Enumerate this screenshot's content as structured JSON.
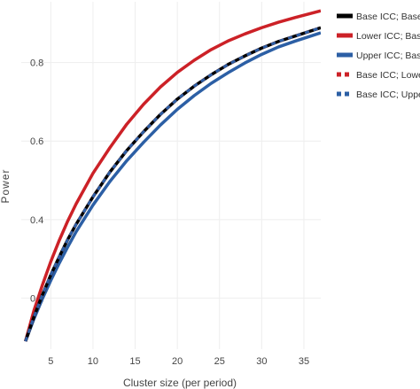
{
  "chart_data": {
    "type": "line",
    "title": "",
    "xlabel": "Cluster size (per period)",
    "ylabel": "Power",
    "xlim": [
      1.5,
      37
    ],
    "ylim": [
      0.07,
      0.955
    ],
    "xticks": [
      5,
      10,
      15,
      20,
      25,
      30,
      35
    ],
    "yticks": [
      0.2,
      0.4,
      0.6,
      0.8
    ],
    "grid": true,
    "legend_position": "top-right",
    "x": [
      2,
      3,
      4,
      5,
      6,
      7,
      8,
      10,
      12,
      14,
      16,
      18,
      20,
      22,
      24,
      26,
      28,
      30,
      32,
      34,
      37
    ],
    "series": [
      {
        "name": "Base ICC; Base CAC",
        "color": "#000000",
        "dash": "solid",
        "values": [
          0.09,
          0.152,
          0.208,
          0.259,
          0.305,
          0.349,
          0.388,
          0.458,
          0.521,
          0.576,
          0.624,
          0.668,
          0.707,
          0.74,
          0.769,
          0.795,
          0.817,
          0.837,
          0.854,
          0.868,
          0.889
        ]
      },
      {
        "name": "Lower ICC; Base CAC",
        "color": "#cc2127",
        "dash": "solid",
        "values": [
          0.09,
          0.168,
          0.233,
          0.293,
          0.347,
          0.396,
          0.44,
          0.518,
          0.583,
          0.643,
          0.694,
          0.738,
          0.775,
          0.806,
          0.833,
          0.855,
          0.873,
          0.889,
          0.903,
          0.915,
          0.932
        ]
      },
      {
        "name": "Upper ICC; Base CAC",
        "color": "#2c5fa5",
        "dash": "solid",
        "values": [
          0.09,
          0.147,
          0.198,
          0.245,
          0.289,
          0.33,
          0.369,
          0.437,
          0.497,
          0.55,
          0.597,
          0.641,
          0.681,
          0.716,
          0.747,
          0.774,
          0.799,
          0.821,
          0.84,
          0.855,
          0.876
        ]
      },
      {
        "name": "Base ICC; Lower CAC",
        "color": "#cc2127",
        "dash": "dashed",
        "values": [
          0.09,
          0.152,
          0.208,
          0.259,
          0.305,
          0.349,
          0.388,
          0.458,
          0.521,
          0.576,
          0.624,
          0.668,
          0.707,
          0.74,
          0.769,
          0.795,
          0.817,
          0.837,
          0.854,
          0.868,
          0.889
        ]
      },
      {
        "name": "Base ICC; Upper CAC",
        "color": "#2c5fa5",
        "dash": "dashed",
        "values": [
          0.09,
          0.152,
          0.208,
          0.259,
          0.305,
          0.349,
          0.388,
          0.458,
          0.521,
          0.576,
          0.624,
          0.668,
          0.707,
          0.74,
          0.769,
          0.795,
          0.817,
          0.837,
          0.854,
          0.868,
          0.889
        ]
      }
    ]
  }
}
